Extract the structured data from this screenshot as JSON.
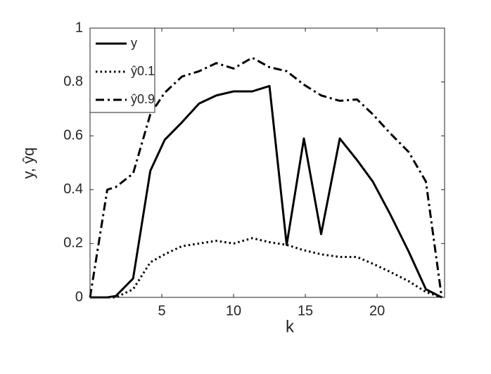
{
  "chart_data": {
    "type": "line",
    "x_label": "k",
    "y_label": "y, ŷq",
    "x": [
      0.0,
      1.2,
      1.8,
      3.0,
      4.2,
      5.2,
      6.4,
      7.6,
      8.8,
      10.0,
      11.3,
      12.5,
      13.7,
      14.9,
      16.1,
      17.4,
      18.6,
      19.7,
      20.9,
      22.2,
      23.4,
      24.5
    ],
    "series": [
      {
        "name": "y",
        "color": "#000000",
        "linestyle": "solid",
        "values": [
          0,
          0,
          0.005,
          0.07,
          0.47,
          0.585,
          0.65,
          0.72,
          0.75,
          0.765,
          0.765,
          0.785,
          0.195,
          0.59,
          0.235,
          0.59,
          0.51,
          0.43,
          0.31,
          0.17,
          0.03,
          0
        ]
      },
      {
        "name": "ŷ0.1",
        "color": "#000000",
        "linestyle": "dotted",
        "values": [
          0,
          0,
          0,
          0.03,
          0.13,
          0.16,
          0.19,
          0.2,
          0.21,
          0.2,
          0.22,
          0.205,
          0.195,
          0.175,
          0.16,
          0.15,
          0.15,
          0.125,
          0.095,
          0.06,
          0.02,
          0
        ]
      },
      {
        "name": "ŷ0.9",
        "color": "#000000",
        "linestyle": "dashdot",
        "values": [
          0,
          0.4,
          0.41,
          0.46,
          0.68,
          0.76,
          0.82,
          0.84,
          0.87,
          0.85,
          0.89,
          0.855,
          0.84,
          0.79,
          0.75,
          0.73,
          0.735,
          0.68,
          0.61,
          0.54,
          0.43,
          0
        ]
      }
    ],
    "xlim": [
      0,
      24.7
    ],
    "xticks": [
      5,
      10,
      15,
      20
    ],
    "ylim": [
      0,
      1
    ],
    "yticks": [
      0,
      0.2,
      0.4,
      0.6,
      0.8,
      1
    ],
    "grid": false,
    "legend": "upper left"
  }
}
